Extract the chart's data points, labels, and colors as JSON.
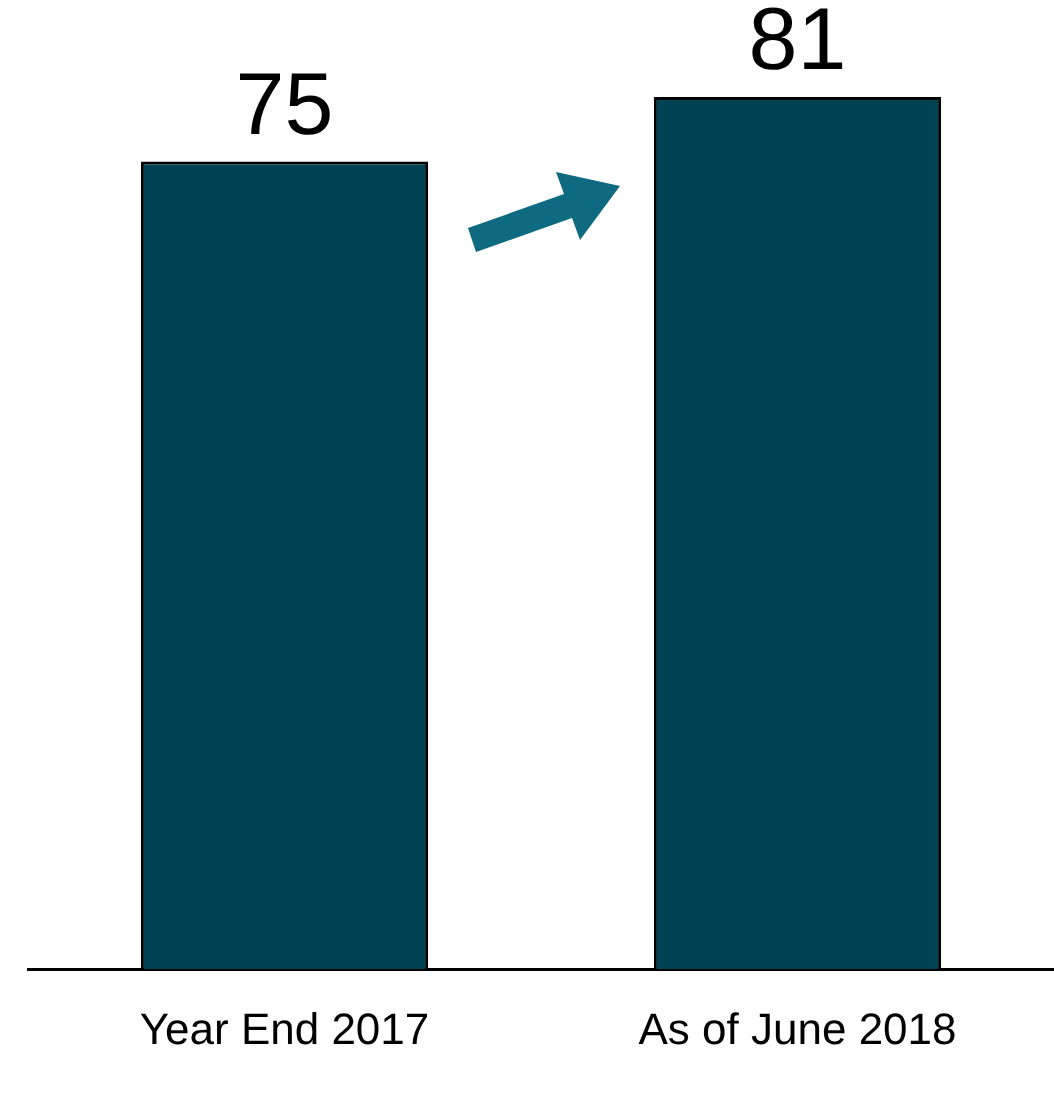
{
  "chart_data": {
    "type": "bar",
    "categories": [
      "Year End 2017",
      "As of June 2018"
    ],
    "values": [
      75,
      81
    ],
    "color": "#004454",
    "data_labels": true
  }
}
